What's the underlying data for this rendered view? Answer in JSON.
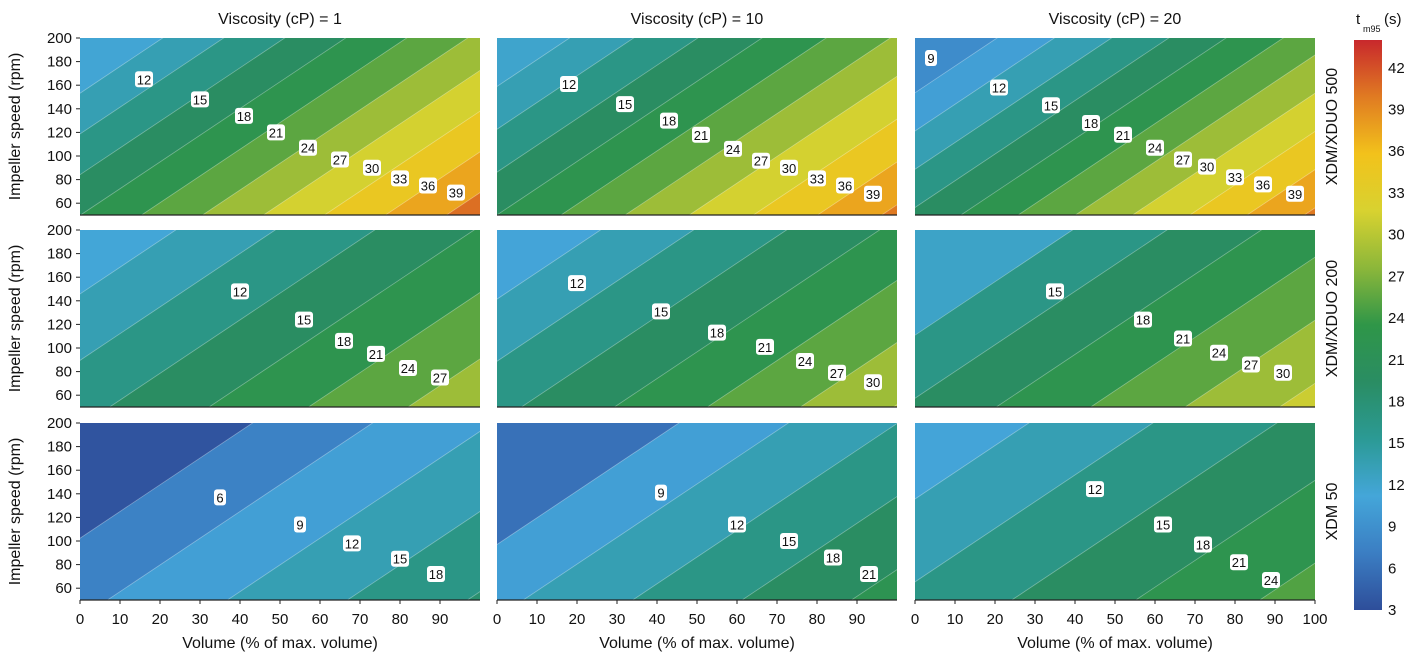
{
  "chart_data": {
    "type": "heatmap",
    "subtype": "contour faceted grid",
    "column_titles": [
      "Viscosity (cP) = 1",
      "Viscosity (cP) = 10",
      "Viscosity (cP) = 20"
    ],
    "row_titles": [
      "XDM/XDUO 500",
      "XDM/XDUO 200",
      "XDM 50"
    ],
    "xlabel": "Volume (% of max. volume)",
    "ylabel": "Impeller speed (rpm)",
    "xlim": [
      0,
      100
    ],
    "ylim": [
      50,
      200
    ],
    "x_ticks": [
      0,
      10,
      20,
      30,
      40,
      50,
      60,
      70,
      80,
      90,
      100
    ],
    "y_ticks": [
      60,
      80,
      100,
      120,
      140,
      160,
      180,
      200
    ],
    "colorbar": {
      "title": "t",
      "title_sub": "m95",
      "title_unit": "(s)",
      "range": [
        3,
        44
      ],
      "ticks": [
        3,
        6,
        9,
        12,
        15,
        18,
        21,
        24,
        27,
        30,
        33,
        36,
        39,
        42
      ]
    },
    "panels": [
      {
        "row": 0,
        "col": 0,
        "x_max": 100,
        "min": 11.5,
        "max": 42.0,
        "levels": [
          12,
          15,
          18,
          21,
          24,
          27,
          30,
          33,
          36,
          39
        ],
        "labels": [
          [
            16,
            165,
            "12"
          ],
          [
            30,
            148,
            "15"
          ],
          [
            41,
            134,
            "18"
          ],
          [
            49,
            120,
            "21"
          ],
          [
            57,
            107,
            "24"
          ],
          [
            65,
            97,
            "27"
          ],
          [
            73,
            90,
            "30"
          ],
          [
            80,
            81,
            "33"
          ],
          [
            87,
            75,
            "36"
          ],
          [
            94,
            69,
            "39"
          ]
        ]
      },
      {
        "row": 0,
        "col": 1,
        "x_max": 100,
        "min": 12.0,
        "max": 41.0,
        "levels": [
          12,
          15,
          18,
          21,
          24,
          27,
          30,
          33,
          36,
          39
        ],
        "labels": [
          [
            18,
            161,
            "12"
          ],
          [
            32,
            144,
            "15"
          ],
          [
            43,
            130,
            "18"
          ],
          [
            51,
            118,
            "21"
          ],
          [
            59,
            106,
            "24"
          ],
          [
            66,
            96,
            "27"
          ],
          [
            73,
            90,
            "30"
          ],
          [
            80,
            81,
            "33"
          ],
          [
            87,
            75,
            "36"
          ],
          [
            94,
            68,
            "39"
          ]
        ]
      },
      {
        "row": 0,
        "col": 2,
        "x_max": 100,
        "min": 8.5,
        "max": 41.0,
        "levels": [
          9,
          12,
          15,
          18,
          21,
          24,
          27,
          30,
          33,
          36,
          39
        ],
        "labels": [
          [
            4,
            183,
            "9"
          ],
          [
            21,
            158,
            "12"
          ],
          [
            34,
            143,
            "15"
          ],
          [
            44,
            128,
            "18"
          ],
          [
            52,
            118,
            "21"
          ],
          [
            60,
            107,
            "24"
          ],
          [
            67,
            97,
            "27"
          ],
          [
            73,
            91,
            "30"
          ],
          [
            80,
            82,
            "33"
          ],
          [
            87,
            76,
            "36"
          ],
          [
            95,
            68,
            "39"
          ]
        ]
      },
      {
        "row": 1,
        "col": 0,
        "x_max": 100,
        "min": 11.3,
        "max": 30.0,
        "levels": [
          12,
          15,
          18,
          21,
          24,
          27
        ],
        "labels": [
          [
            40,
            148,
            "12"
          ],
          [
            56,
            124,
            "15"
          ],
          [
            66,
            106,
            "18"
          ],
          [
            74,
            95,
            "21"
          ],
          [
            82,
            83,
            "24"
          ],
          [
            90,
            75,
            "27"
          ]
        ]
      },
      {
        "row": 1,
        "col": 1,
        "x_max": 100,
        "min": 11.0,
        "max": 31.0,
        "levels": [
          12,
          15,
          18,
          21,
          24,
          27,
          30
        ],
        "labels": [
          [
            20,
            155,
            "12"
          ],
          [
            41,
            131,
            "15"
          ],
          [
            55,
            113,
            "18"
          ],
          [
            67,
            101,
            "21"
          ],
          [
            77,
            89,
            "24"
          ],
          [
            85,
            79,
            "27"
          ],
          [
            94,
            71,
            "30"
          ]
        ]
      },
      {
        "row": 1,
        "col": 2,
        "x_max": 100,
        "min": 12.3,
        "max": 32.0,
        "levels": [
          15,
          18,
          21,
          24,
          27,
          30
        ],
        "labels": [
          [
            35,
            148,
            "15"
          ],
          [
            57,
            124,
            "18"
          ],
          [
            67,
            108,
            "21"
          ],
          [
            76,
            96,
            "24"
          ],
          [
            84,
            86,
            "27"
          ],
          [
            92,
            79,
            "30"
          ]
        ]
      },
      {
        "row": 2,
        "col": 0,
        "x_max": 100,
        "min": 3.5,
        "max": 19.0,
        "levels": [
          6,
          9,
          12,
          15,
          18
        ],
        "labels": [
          [
            35,
            137,
            "6"
          ],
          [
            55,
            114,
            "9"
          ],
          [
            68,
            98,
            "12"
          ],
          [
            80,
            85,
            "15"
          ],
          [
            89,
            72,
            "18"
          ]
        ]
      },
      {
        "row": 2,
        "col": 1,
        "x_max": 100,
        "min": 6.0,
        "max": 23.0,
        "levels": [
          9,
          12,
          15,
          18,
          21
        ],
        "labels": [
          [
            41,
            141,
            "9"
          ],
          [
            60,
            114,
            "12"
          ],
          [
            73,
            100,
            "15"
          ],
          [
            84,
            86,
            "18"
          ],
          [
            93,
            72,
            "21"
          ]
        ]
      },
      {
        "row": 2,
        "col": 2,
        "x_max": 100,
        "min": 11.0,
        "max": 26.0,
        "levels": [
          12,
          15,
          18,
          21,
          24
        ],
        "labels": [
          [
            45,
            144,
            "12"
          ],
          [
            62,
            114,
            "15"
          ],
          [
            72,
            97,
            "18"
          ],
          [
            81,
            82,
            "21"
          ],
          [
            89,
            67,
            "24"
          ]
        ]
      }
    ],
    "colors": [
      "#2e4e9a",
      "#3b7ec3",
      "#44a6d9",
      "#2b9a95",
      "#2a8d63",
      "#2f9648",
      "#8cb73a",
      "#d8d230",
      "#f2c21b",
      "#e07b22",
      "#c8282c"
    ]
  }
}
